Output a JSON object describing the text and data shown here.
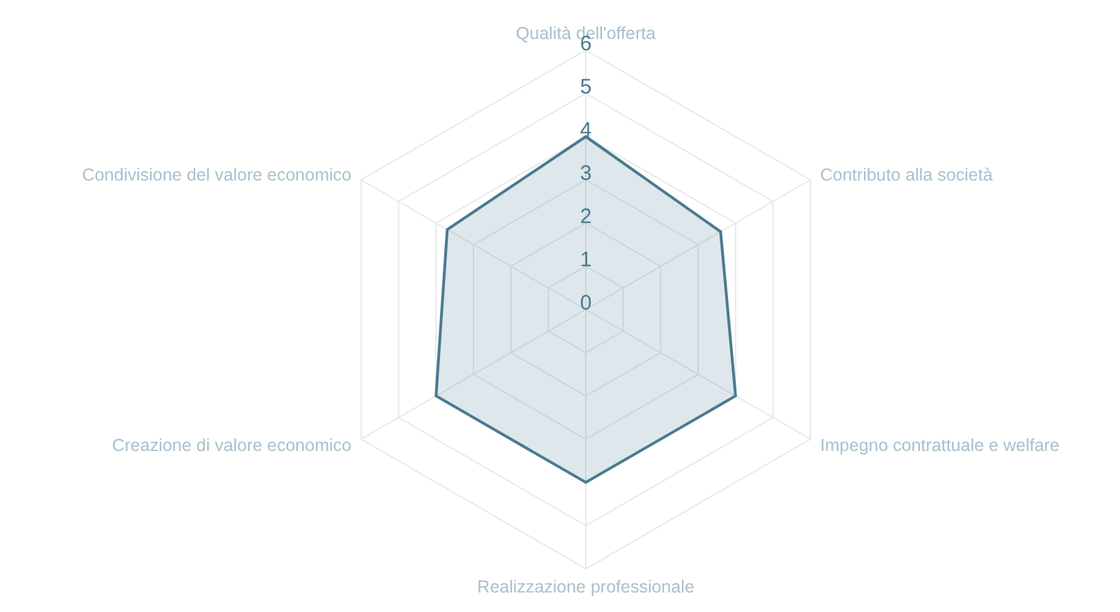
{
  "chart_data": {
    "type": "radar",
    "categories": [
      "Qualità dell'offerta",
      "Contributo alla società",
      "Impegno contrattuale e welfare",
      "Realizzazione professionale",
      "Creazione di valore economico",
      "Condivisione del valore economico"
    ],
    "series": [
      {
        "color": "#4a7a8f",
        "values": [
          4,
          3.6,
          4,
          4,
          4,
          3.7
        ]
      }
    ],
    "ylim": [
      0,
      6
    ],
    "yticks": [
      0,
      1,
      2,
      3,
      4,
      5,
      6
    ],
    "grid": true
  }
}
